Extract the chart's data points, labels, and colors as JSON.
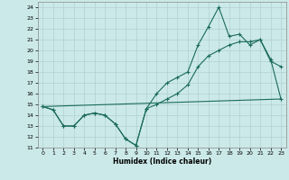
{
  "xlabel": "Humidex (Indice chaleur)",
  "bg_color": "#cce9e9",
  "grid_color": "#b0d0d0",
  "line_color": "#1a6b5a",
  "xlim": [
    -0.5,
    23.5
  ],
  "ylim": [
    11,
    24.5
  ],
  "yticks": [
    11,
    12,
    13,
    14,
    15,
    16,
    17,
    18,
    19,
    20,
    21,
    22,
    23,
    24
  ],
  "xticks": [
    0,
    1,
    2,
    3,
    4,
    5,
    6,
    7,
    8,
    9,
    10,
    11,
    12,
    13,
    14,
    15,
    16,
    17,
    18,
    19,
    20,
    21,
    22,
    23
  ],
  "line1_x": [
    0,
    1,
    2,
    3,
    4,
    5,
    6,
    7,
    8,
    9,
    10,
    11,
    12,
    13,
    14,
    15,
    16,
    17,
    18,
    19,
    20,
    21,
    22,
    23
  ],
  "line1_y": [
    14.8,
    14.5,
    13.0,
    13.0,
    14.0,
    14.2,
    14.0,
    13.2,
    11.8,
    11.2,
    14.6,
    16.0,
    17.0,
    17.5,
    18.0,
    20.5,
    22.2,
    24.0,
    21.3,
    21.5,
    20.5,
    21.0,
    19.0,
    18.5
  ],
  "line2_x": [
    0,
    1,
    2,
    3,
    4,
    5,
    6,
    7,
    8,
    9,
    10,
    11,
    12,
    13,
    14,
    15,
    16,
    17,
    18,
    19,
    20,
    21,
    22,
    23
  ],
  "line2_y": [
    14.8,
    14.5,
    13.0,
    13.0,
    14.0,
    14.2,
    14.0,
    13.2,
    11.8,
    11.2,
    14.6,
    15.0,
    15.5,
    16.0,
    16.8,
    18.5,
    19.5,
    20.0,
    20.5,
    20.8,
    20.8,
    21.0,
    19.2,
    15.5
  ],
  "line3_x": [
    0,
    23
  ],
  "line3_y": [
    14.8,
    15.5
  ]
}
